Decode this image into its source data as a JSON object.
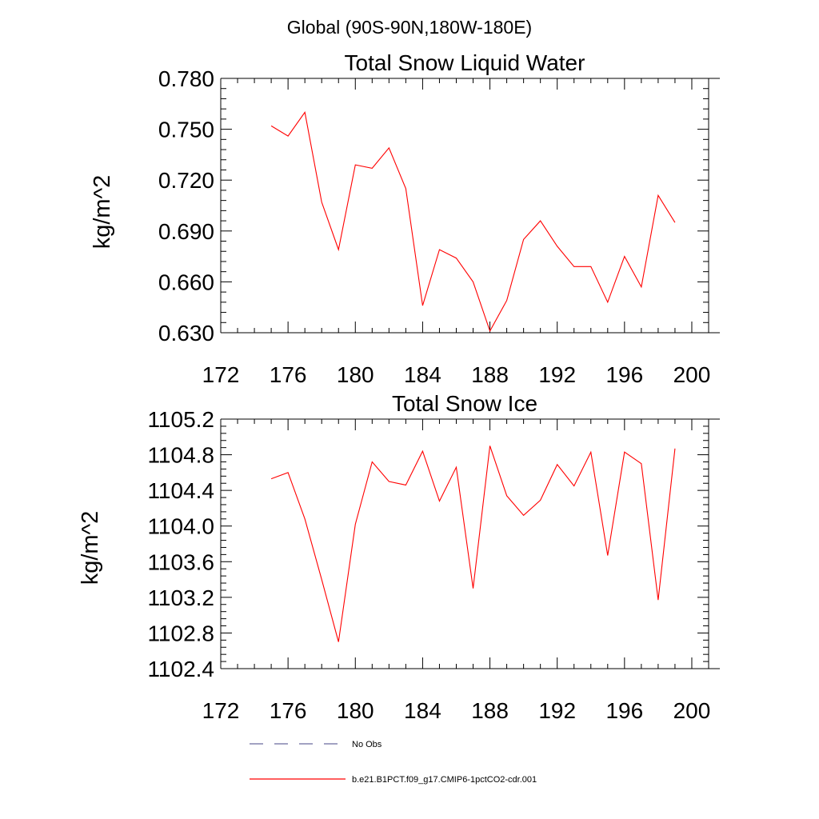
{
  "header": {
    "region_title": "Global (90S-90N,180W-180E)"
  },
  "colors": {
    "model_line": "#ff0000",
    "obs_line": "#6b6b9e",
    "axis": "#000000"
  },
  "legend": {
    "obs_label": "No Obs",
    "model_label": "b.e21.B1PCT.f09_g17.CMIP6-1pctCO2-cdr.001",
    "placement": "bottom"
  },
  "chart_data": [
    {
      "type": "line",
      "title": "Total Snow Liquid Water",
      "xlabel": "",
      "ylabel": "kg/m^2",
      "xlim": [
        172,
        201
      ],
      "ylim": [
        0.63,
        0.78
      ],
      "x_ticks": [
        172,
        176,
        180,
        184,
        188,
        192,
        196,
        200
      ],
      "y_ticks": [
        0.63,
        0.66,
        0.69,
        0.72,
        0.75,
        0.78
      ],
      "y_tick_labels": [
        "0.630",
        "0.660",
        "0.690",
        "0.720",
        "0.750",
        "0.780"
      ],
      "grid": false,
      "series": [
        {
          "name": "b.e21.B1PCT.f09_g17.CMIP6-1pctCO2-cdr.001",
          "color": "#ff0000",
          "x": [
            175,
            176,
            177,
            178,
            179,
            180,
            181,
            182,
            183,
            184,
            185,
            186,
            187,
            188,
            189,
            190,
            191,
            192,
            193,
            194,
            195,
            196,
            197,
            198,
            199
          ],
          "values": [
            0.752,
            0.746,
            0.76,
            0.707,
            0.679,
            0.729,
            0.727,
            0.739,
            0.715,
            0.646,
            0.679,
            0.674,
            0.66,
            0.631,
            0.649,
            0.685,
            0.696,
            0.681,
            0.669,
            0.669,
            0.648,
            0.675,
            0.657,
            0.711,
            0.695
          ]
        }
      ]
    },
    {
      "type": "line",
      "title": "Total Snow Ice",
      "xlabel": "",
      "ylabel": "kg/m^2",
      "xlim": [
        172,
        201
      ],
      "ylim": [
        1102.4,
        1105.2
      ],
      "x_ticks": [
        172,
        176,
        180,
        184,
        188,
        192,
        196,
        200
      ],
      "y_ticks": [
        1102.4,
        1102.8,
        1103.2,
        1103.6,
        1104.0,
        1104.4,
        1104.8,
        1105.2
      ],
      "y_tick_labels": [
        "1102.4",
        "1102.8",
        "1103.2",
        "1103.6",
        "1104.0",
        "1104.4",
        "1104.8",
        "1105.2"
      ],
      "grid": false,
      "series": [
        {
          "name": "b.e21.B1PCT.f09_g17.CMIP6-1pctCO2-cdr.001",
          "color": "#ff0000",
          "x": [
            175,
            176,
            177,
            178,
            179,
            180,
            181,
            182,
            183,
            184,
            185,
            186,
            187,
            188,
            189,
            190,
            191,
            192,
            193,
            194,
            195,
            196,
            197,
            198,
            199
          ],
          "values": [
            1104.53,
            1104.6,
            1104.08,
            1103.4,
            1102.7,
            1104.02,
            1104.72,
            1104.5,
            1104.46,
            1104.84,
            1104.28,
            1104.66,
            1103.3,
            1104.9,
            1104.34,
            1104.12,
            1104.29,
            1104.69,
            1104.45,
            1104.83,
            1103.67,
            1104.83,
            1104.7,
            1103.17,
            1104.87
          ]
        }
      ]
    }
  ]
}
